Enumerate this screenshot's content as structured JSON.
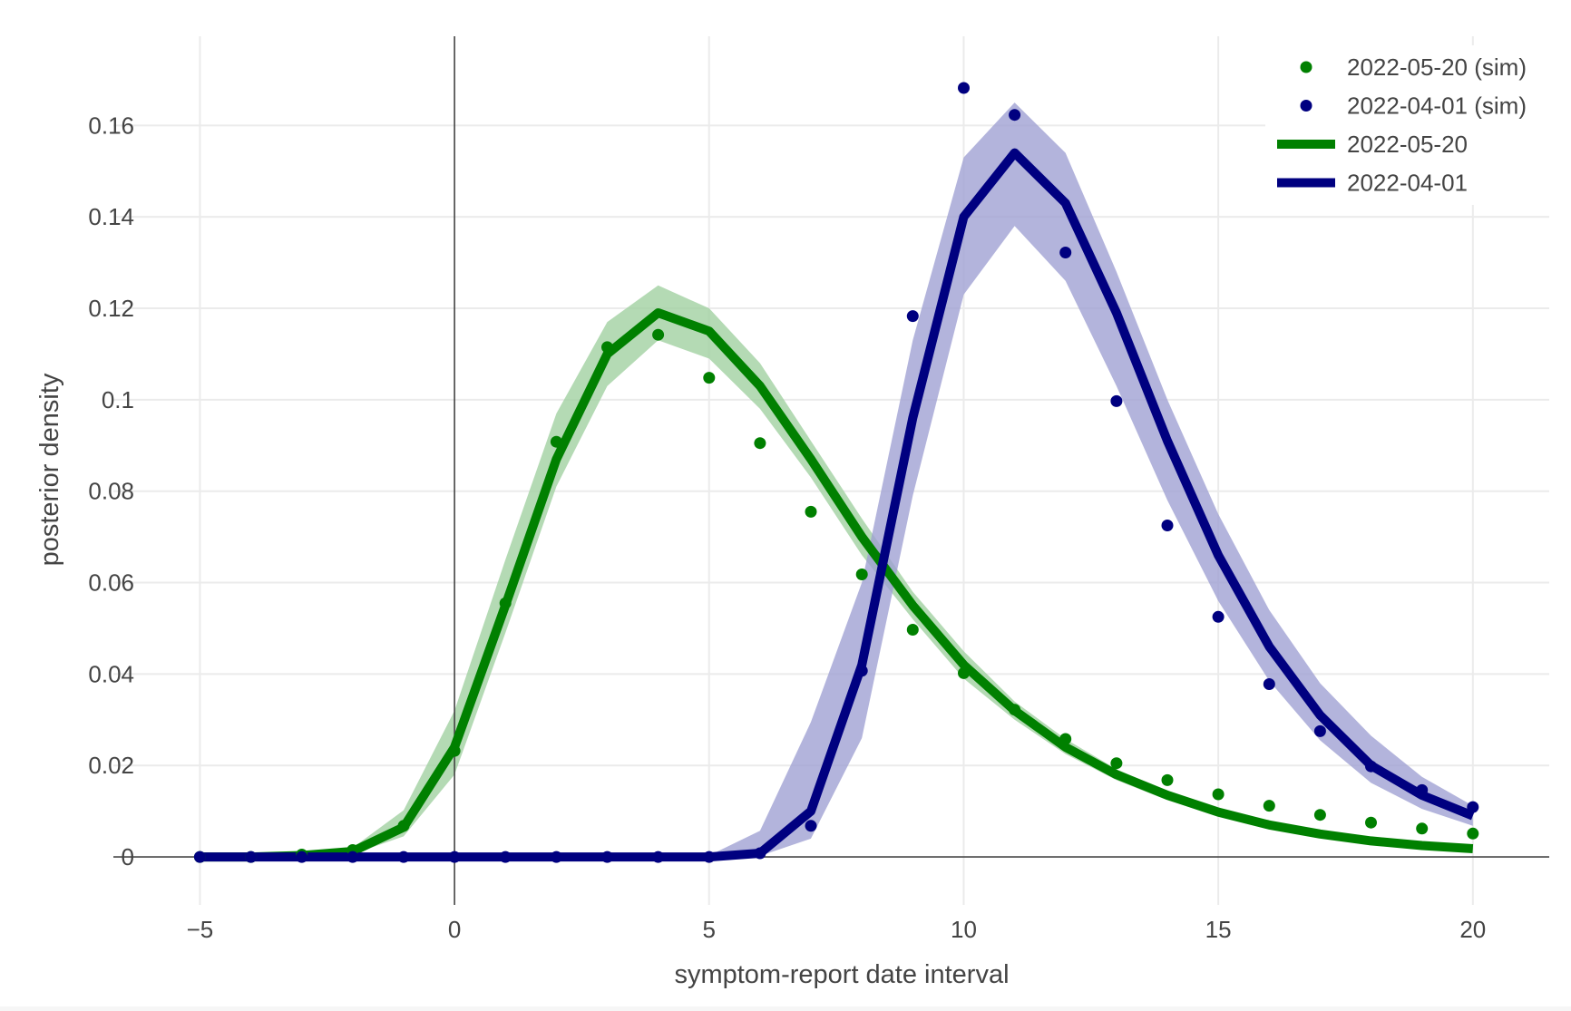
{
  "chart_data": {
    "type": "line",
    "xlabel": "symptom-report date interval",
    "ylabel": "posterior density",
    "xlim": [
      -6.7,
      21.5
    ],
    "ylim": [
      -0.0105,
      0.1795
    ],
    "x_ticks": [
      -5,
      0,
      5,
      10,
      15,
      20
    ],
    "x_tick_labels": [
      "−5",
      "0",
      "5",
      "10",
      "15",
      "20"
    ],
    "y_ticks": [
      0,
      0.02,
      0.04,
      0.06,
      0.08,
      0.1,
      0.12,
      0.14,
      0.16
    ],
    "y_tick_labels": [
      "0",
      "0.02",
      "0.04",
      "0.06",
      "0.08",
      "0.1",
      "0.12",
      "0.14",
      "0.16"
    ],
    "grid": true,
    "legend_position": "top-right",
    "colors": {
      "green": "#008000",
      "green_band": "#9fd09f",
      "navy": "#000080",
      "navy_band": "#9d9fd2",
      "grid": "#ebebeb",
      "axis": "#444444"
    },
    "x": [
      -5,
      -4,
      -3,
      -2,
      -1,
      0,
      1,
      2,
      3,
      4,
      5,
      6,
      7,
      8,
      9,
      10,
      11,
      12,
      13,
      14,
      15,
      16,
      17,
      18,
      19,
      20
    ],
    "series": [
      {
        "name": "2022-05-20",
        "kind": "line",
        "color": "#008000",
        "values": [
          0,
          0,
          0.0003,
          0.0012,
          0.0065,
          0.024,
          0.055,
          0.087,
          0.11,
          0.119,
          0.115,
          0.103,
          0.087,
          0.07,
          0.055,
          0.042,
          0.032,
          0.024,
          0.018,
          0.0135,
          0.0098,
          0.007,
          0.005,
          0.0035,
          0.0025,
          0.0018
        ],
        "band_lower": [
          0,
          0,
          0.0001,
          0.0006,
          0.0045,
          0.018,
          0.049,
          0.081,
          0.103,
          0.113,
          0.109,
          0.098,
          0.083,
          0.066,
          0.052,
          0.039,
          0.03,
          0.0225,
          0.0168,
          0.0124,
          0.009,
          0.0063,
          0.0045,
          0.0031,
          0.0022,
          0.0016
        ],
        "band_upper": [
          0.0001,
          0.0002,
          0.0006,
          0.002,
          0.0102,
          0.032,
          0.065,
          0.097,
          0.117,
          0.125,
          0.12,
          0.108,
          0.091,
          0.074,
          0.058,
          0.045,
          0.034,
          0.0258,
          0.0192,
          0.0143,
          0.0105,
          0.0076,
          0.0054,
          0.0039,
          0.0028,
          0.002
        ]
      },
      {
        "name": "2022-04-01",
        "kind": "line",
        "color": "#000080",
        "values": [
          0,
          0,
          0,
          0,
          0,
          0,
          0,
          0,
          0,
          0,
          0,
          0.0008,
          0.01,
          0.042,
          0.096,
          0.14,
          0.154,
          0.143,
          0.119,
          0.091,
          0.066,
          0.046,
          0.031,
          0.02,
          0.0135,
          0.009
        ],
        "band_lower": [
          0,
          0,
          0,
          0,
          0,
          0,
          0,
          0,
          0,
          0,
          0,
          0.0002,
          0.004,
          0.026,
          0.079,
          0.123,
          0.138,
          0.126,
          0.103,
          0.078,
          0.056,
          0.0385,
          0.0255,
          0.0162,
          0.0105,
          0.0068
        ],
        "band_upper": [
          0,
          0,
          0,
          0,
          0,
          0,
          0,
          0,
          0,
          0,
          0.0003,
          0.0057,
          0.0295,
          0.06,
          0.113,
          0.153,
          0.165,
          0.154,
          0.128,
          0.1,
          0.075,
          0.054,
          0.038,
          0.0265,
          0.0175,
          0.0112
        ]
      },
      {
        "name": "2022-05-20 (sim)",
        "kind": "points",
        "color": "#008000",
        "values": [
          0,
          0,
          0.0005,
          0.0015,
          0.0068,
          0.0232,
          0.0555,
          0.0908,
          0.1115,
          0.1142,
          0.1048,
          0.0905,
          0.0755,
          0.0618,
          0.0497,
          0.0402,
          0.0322,
          0.0258,
          0.0205,
          0.0168,
          0.0137,
          0.0112,
          0.0092,
          0.0075,
          0.0062,
          0.0051
        ]
      },
      {
        "name": "2022-04-01 (sim)",
        "kind": "points",
        "color": "#000080",
        "values": [
          0,
          0,
          0,
          0,
          0,
          0,
          0,
          0,
          0,
          0,
          0,
          0.0008,
          0.0068,
          0.0407,
          0.1183,
          0.1682,
          0.1623,
          0.1322,
          0.0997,
          0.0725,
          0.0525,
          0.0378,
          0.0275,
          0.0198,
          0.0146,
          0.0109
        ]
      }
    ],
    "legend": [
      {
        "label": "2022-05-20 (sim)",
        "kind": "points",
        "color": "#008000"
      },
      {
        "label": "2022-04-01 (sim)",
        "kind": "points",
        "color": "#000080"
      },
      {
        "label": "2022-05-20",
        "kind": "line",
        "color": "#008000"
      },
      {
        "label": "2022-04-01",
        "kind": "line",
        "color": "#000080"
      }
    ]
  }
}
